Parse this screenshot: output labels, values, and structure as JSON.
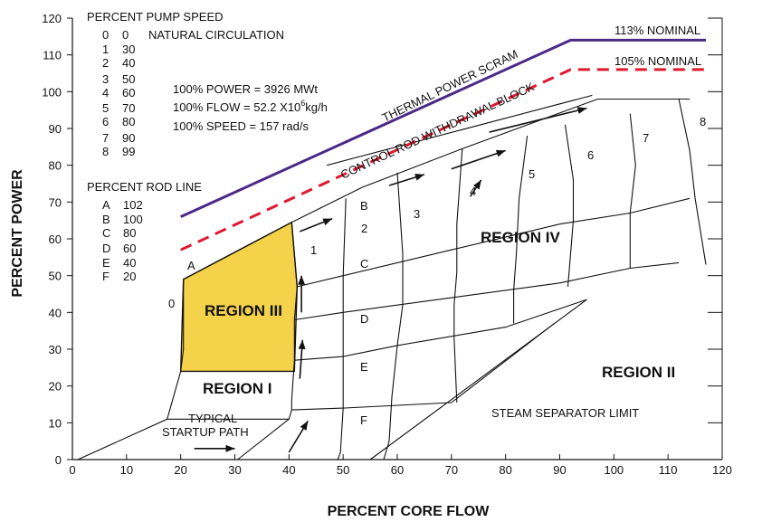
{
  "chart_data": {
    "type": "line",
    "title": "",
    "xlabel": "PERCENT CORE FLOW",
    "ylabel": "PERCENT POWER",
    "xlim": [
      0,
      120
    ],
    "ylim": [
      0,
      120
    ],
    "x_ticks": [
      "0",
      "10",
      "20",
      "30",
      "40",
      "50",
      "60",
      "70",
      "80",
      "90",
      "100",
      "110",
      "120"
    ],
    "y_ticks": [
      "0",
      "10",
      "20",
      "30",
      "40",
      "50",
      "60",
      "70",
      "80",
      "90",
      "100",
      "110",
      "120"
    ],
    "grid": false,
    "colors": {
      "scram": "#4b2a86",
      "rodblock": "#e0192f",
      "region3": "#f4d24a",
      "ink": "#111111"
    },
    "pump_speed": {
      "title": "PERCENT PUMP SPEED",
      "rows": [
        {
          "line": "0",
          "speed": "0",
          "note": "NATURAL CIRCULATION"
        },
        {
          "line": "1",
          "speed": "30"
        },
        {
          "line": "2",
          "speed": "40"
        },
        {
          "line": "3",
          "speed": "50"
        },
        {
          "line": "4",
          "speed": "60"
        },
        {
          "line": "5",
          "speed": "70"
        },
        {
          "line": "6",
          "speed": "80"
        },
        {
          "line": "7",
          "speed": "90"
        },
        {
          "line": "8",
          "speed": "99"
        }
      ]
    },
    "rod_line": {
      "title": "PERCENT ROD LINE",
      "rows": [
        {
          "line": "A",
          "value": "102"
        },
        {
          "line": "B",
          "value": "100"
        },
        {
          "line": "C",
          "value": "80"
        },
        {
          "line": "D",
          "value": "60"
        },
        {
          "line": "E",
          "value": "40"
        },
        {
          "line": "F",
          "value": "20"
        }
      ]
    },
    "nominal": {
      "power": "100% POWER = 3926 MWt",
      "flow_pre": "100% FLOW = 52.2 X10",
      "flow_exp": "6",
      "flow_post": "kg/h",
      "speed": "100% SPEED = 157 rad/s"
    },
    "series": [
      {
        "name": "THERMAL POWER SCRAM",
        "label_right": "113% NOMINAL",
        "style": "solid",
        "points": [
          [
            20,
            66
          ],
          [
            92,
            114
          ],
          [
            117,
            114
          ]
        ]
      },
      {
        "name": "CONTROL ROD WITHDRAWAL BLOCK",
        "label_right": "105% NOMINAL",
        "style": "dashed",
        "points": [
          [
            20,
            57
          ],
          [
            92,
            106
          ],
          [
            117,
            106
          ]
        ]
      }
    ],
    "regions": {
      "region_i": "REGION I",
      "region_ii": "REGION II",
      "region_iii": "REGION III",
      "region_iv": "REGION IV"
    },
    "region_iii_polygon": [
      [
        20.5,
        49
      ],
      [
        40.5,
        64.5
      ],
      [
        41.5,
        47
      ],
      [
        41,
        24
      ],
      [
        20,
        24
      ]
    ],
    "rod_lines": [
      {
        "label": "A",
        "points": [
          [
            20.5,
            49
          ],
          [
            40.5,
            64.5
          ],
          [
            53.5,
            74
          ],
          [
            72,
            84.5
          ],
          [
            97,
            98
          ],
          [
            114,
            98
          ]
        ]
      },
      {
        "label": "C",
        "points": [
          [
            41.5,
            47
          ],
          [
            50,
            50
          ],
          [
            70,
            57
          ],
          [
            90,
            64
          ],
          [
            103,
            67
          ],
          [
            114,
            71
          ]
        ]
      },
      {
        "label": "D",
        "points": [
          [
            41,
            38
          ],
          [
            50,
            40
          ],
          [
            70,
            44
          ],
          [
            90,
            48
          ],
          [
            103,
            52
          ],
          [
            112,
            53.5
          ]
        ]
      },
      {
        "label": "E",
        "points": [
          [
            41,
            27
          ],
          [
            50,
            28
          ],
          [
            60,
            31
          ],
          [
            80,
            36
          ],
          [
            95,
            43.5
          ]
        ]
      },
      {
        "label": "F",
        "points": [
          [
            40.5,
            13.5
          ],
          [
            50,
            14
          ],
          [
            70,
            15.5
          ],
          [
            89,
            37
          ]
        ]
      },
      {
        "label": "B",
        "points": [
          [
            47,
            80
          ],
          [
            96,
            99
          ]
        ]
      }
    ],
    "pump_lines": [
      {
        "label": "0",
        "points": [
          [
            20.5,
            49
          ],
          [
            20.5,
            30
          ],
          [
            20,
            24
          ],
          [
            17.5,
            11
          ],
          [
            1,
            0
          ]
        ]
      },
      {
        "label": "1",
        "points": [
          [
            40.5,
            64.5
          ],
          [
            41.5,
            47
          ],
          [
            41,
            38
          ],
          [
            41,
            27
          ],
          [
            40.5,
            16
          ],
          [
            40.5,
            13.5
          ],
          [
            40,
            11
          ],
          [
            30.5,
            0
          ]
        ]
      },
      {
        "label": "2",
        "points": [
          [
            50.5,
            71
          ],
          [
            50,
            50
          ],
          [
            50,
            40
          ],
          [
            50,
            28
          ],
          [
            50,
            14
          ],
          [
            49.5,
            2
          ],
          [
            49,
            0
          ]
        ]
      },
      {
        "label": "3",
        "points": [
          [
            60,
            78
          ],
          [
            61,
            56
          ],
          [
            61,
            42
          ],
          [
            60,
            31
          ],
          [
            59,
            17
          ],
          [
            58.5,
            5
          ],
          [
            57.5,
            0
          ]
        ]
      },
      {
        "label": "4",
        "points": [
          [
            72,
            84.5
          ],
          [
            71,
            64
          ],
          [
            71,
            51
          ],
          [
            70.5,
            42
          ],
          [
            70.5,
            33
          ],
          [
            71,
            15.5
          ]
        ]
      },
      {
        "label": "5",
        "points": [
          [
            84,
            88
          ],
          [
            82.5,
            71
          ],
          [
            82,
            56
          ],
          [
            81.5,
            46
          ],
          [
            81.5,
            37
          ]
        ]
      },
      {
        "label": "6",
        "points": [
          [
            91,
            91
          ],
          [
            92.5,
            76
          ],
          [
            92.5,
            65
          ],
          [
            91.5,
            47
          ]
        ]
      },
      {
        "label": "7",
        "points": [
          [
            103,
            94
          ],
          [
            104,
            80
          ],
          [
            103,
            67
          ],
          [
            103,
            52
          ]
        ]
      },
      {
        "label": "8",
        "points": [
          [
            112,
            98
          ],
          [
            114,
            84
          ],
          [
            115,
            71
          ],
          [
            117,
            53
          ]
        ]
      }
    ],
    "steam_separator": {
      "label": "STEAM SEPARATOR LIMIT",
      "points": [
        [
          55,
          0
        ],
        [
          95,
          43.5
        ]
      ]
    },
    "startup": {
      "label_line1": "TYPICAL",
      "label_line2": "STARTUP PATH"
    }
  }
}
